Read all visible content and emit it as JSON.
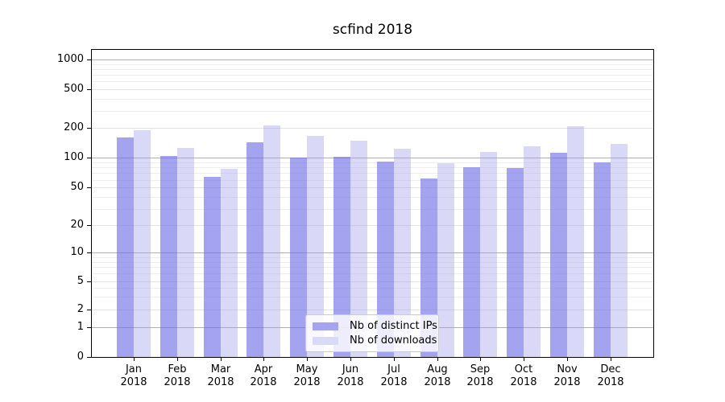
{
  "title": "scfind 2018",
  "chart_data": {
    "type": "bar",
    "title": "scfind 2018",
    "categories": [
      "Jan 2018",
      "Feb 2018",
      "Mar 2018",
      "Apr 2018",
      "May 2018",
      "Jun 2018",
      "Jul 2018",
      "Aug 2018",
      "Sep 2018",
      "Oct 2018",
      "Nov 2018",
      "Dec 2018"
    ],
    "month_labels": [
      "Jan",
      "Feb",
      "Mar",
      "Apr",
      "May",
      "Jun",
      "Jul",
      "Aug",
      "Sep",
      "Oct",
      "Nov",
      "Dec"
    ],
    "year_label": "2018",
    "series": [
      {
        "name": "Nb of distinct IPs",
        "color": "#a4a4f2",
        "values": [
          160,
          105,
          64,
          143,
          100,
          102,
          91,
          62,
          80,
          79,
          112,
          90
        ]
      },
      {
        "name": "Nb of downloads",
        "color": "#d9d9fa",
        "values": [
          190,
          125,
          77,
          210,
          165,
          150,
          123,
          88,
          115,
          131,
          208,
          137
        ]
      }
    ],
    "y_axis": {
      "scale": "log-like",
      "ticks": [
        0,
        1,
        2,
        5,
        10,
        20,
        50,
        100,
        200,
        500,
        1000
      ],
      "range": [
        0,
        1000
      ]
    },
    "x_axis": {
      "label": ""
    },
    "legend": {
      "position": "bottom-center",
      "entries": [
        "Nb of distinct IPs",
        "Nb of downloads"
      ]
    },
    "grid": true
  },
  "colors": {
    "bar_ips": "#a4a4f2",
    "bar_ips_rgba": "rgba(110,110,230,0.63)",
    "bar_downloads": "#d9d9fa",
    "bar_downloads_rgba": "rgba(160,160,235,0.40)",
    "grid_major": "#b0b0b0",
    "grid_mid": "#e3e3e3",
    "grid_minor": "#eeeeee",
    "axis": "#000000",
    "legend_border": "#cccccc"
  }
}
